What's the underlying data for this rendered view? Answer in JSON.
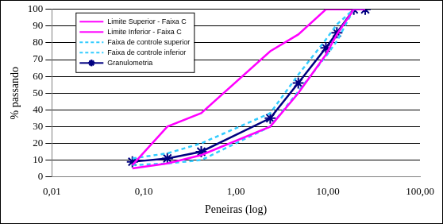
{
  "chart_data": {
    "type": "line",
    "x_label": "Peneiras (log)",
    "y_label": "% passando",
    "x": [
      0.075,
      0.18,
      0.42,
      2.36,
      4.76,
      9.5,
      12.5,
      19.1,
      25.4
    ],
    "series": [
      {
        "name": "Limite Superior - Faixa C",
        "color": "#ff00ff",
        "line_style": "solid",
        "marker": "none",
        "values": [
          7,
          30,
          38,
          75,
          85,
          100,
          100,
          100,
          100
        ]
      },
      {
        "name": "Limite Inferior - Faixa C",
        "color": "#ff00ff",
        "line_style": "solid",
        "marker": "none",
        "values": [
          5,
          8,
          13,
          30,
          50,
          73,
          85,
          100,
          100
        ]
      },
      {
        "name": "Faixa de controle superior",
        "color": "#33ccff",
        "line_style": "dashed",
        "marker": "none",
        "values": [
          11,
          14,
          20,
          38,
          61,
          82,
          91,
          100,
          100
        ]
      },
      {
        "name": "Faixa de controle inferior",
        "color": "#33ccff",
        "line_style": "dashed",
        "marker": "none",
        "values": [
          7,
          8,
          10,
          30,
          51,
          72,
          81,
          100,
          100
        ]
      },
      {
        "name": "Granulometria",
        "color": "#000080",
        "line_style": "solid",
        "marker": "star",
        "values": [
          9,
          11,
          15,
          35,
          56,
          77,
          86,
          100,
          100
        ]
      }
    ],
    "log": "x",
    "xlim": [
      0.01,
      100
    ],
    "xticks": [
      {
        "value": 0.01,
        "label": "0,01"
      },
      {
        "value": 0.1,
        "label": "0,10"
      },
      {
        "value": 1,
        "label": "1,00"
      },
      {
        "value": 10,
        "label": "10,00"
      },
      {
        "value": 100,
        "label": "100,00"
      }
    ],
    "ylim": [
      0,
      100
    ],
    "yticks": [
      0,
      10,
      20,
      30,
      40,
      50,
      60,
      70,
      80,
      90,
      100
    ],
    "grid": "y",
    "legend": "top-left"
  }
}
